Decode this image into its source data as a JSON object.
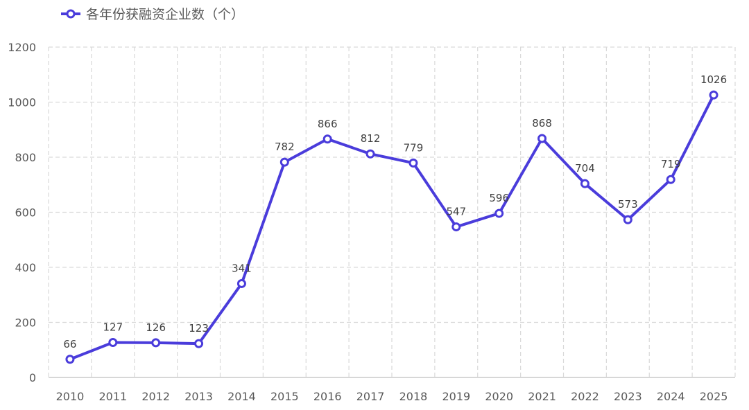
{
  "chart_data": {
    "type": "line",
    "title": "",
    "xlabel": "",
    "ylabel": "",
    "categories": [
      "2010",
      "2011",
      "2012",
      "2013",
      "2014",
      "2015",
      "2016",
      "2017",
      "2018",
      "2019",
      "2020",
      "2021",
      "2022",
      "2023",
      "2024",
      "2025"
    ],
    "series": [
      {
        "name": "各年份获融资企业数（个）",
        "values": [
          66,
          127,
          126,
          123,
          341,
          782,
          866,
          812,
          779,
          547,
          596,
          868,
          704,
          573,
          719,
          1026
        ],
        "color": "#4A3CDB"
      }
    ],
    "ylim": [
      0,
      1200
    ],
    "yticks": [
      0,
      200,
      400,
      600,
      800,
      1000,
      1200
    ],
    "grid": "dashed both axes",
    "legend_position": "top-left"
  }
}
